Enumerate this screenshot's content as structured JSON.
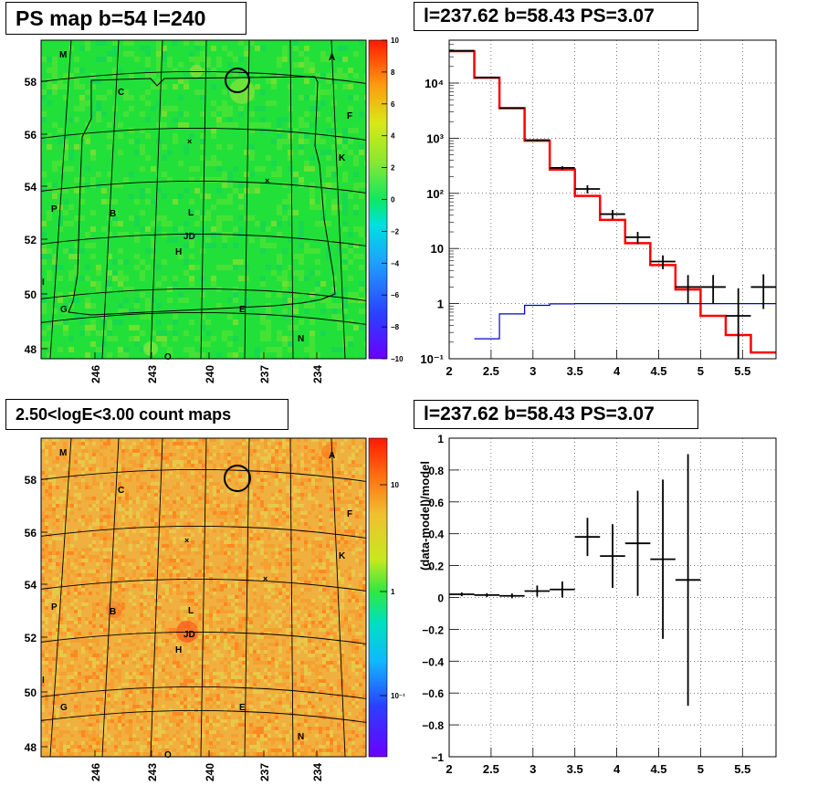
{
  "panels": {
    "ps_map": {
      "title": "PS map b=54 l=240",
      "lat_ticks": [
        "58",
        "56",
        "54",
        "52",
        "50",
        "48"
      ],
      "lon_ticks": [
        "246",
        "243",
        "240",
        "237",
        "234"
      ],
      "colorbar_ticks": [
        "10",
        "8",
        "6",
        "4",
        "2",
        "0",
        "−2",
        "−4",
        "−6",
        "−8",
        "−10"
      ],
      "colorbar_range": [
        -10,
        10
      ]
    },
    "count_map": {
      "title": "2.50<logE<3.00 count maps",
      "lat_ticks": [
        "58",
        "56",
        "54",
        "52",
        "50",
        "48"
      ],
      "lon_ticks": [
        "246",
        "243",
        "240",
        "237",
        "234"
      ],
      "colorbar_ticks": [
        "10",
        "1",
        "10⁻¹"
      ]
    },
    "spectrum": {
      "title": "l=237.62 b=58.43 PS=3.07"
    },
    "residual": {
      "title": "l=237.62 b=58.43 PS=3.07"
    }
  },
  "map_labels": [
    "M",
    "A",
    "C",
    "F",
    "K",
    "P",
    "B",
    "L",
    "JD",
    "H",
    "I",
    "G",
    "E",
    "N",
    "O"
  ],
  "colors": {
    "ps_background": "#22e03a",
    "count_background": "#f0b040",
    "model_line": "#ff0000",
    "background_line": "#0000cc",
    "data": "#000000"
  },
  "chart_data": [
    {
      "type": "line",
      "panel": "spectrum",
      "xlim": [
        2.0,
        5.9
      ],
      "ylim": [
        0.1,
        60000
      ],
      "yscale": "log",
      "x_ticks": [
        "2",
        "2.5",
        "3",
        "3.5",
        "4",
        "4.5",
        "5",
        "5.5"
      ],
      "y_ticks": [
        "10⁻¹",
        "1",
        "10",
        "10²",
        "10³",
        "10⁴"
      ],
      "grid": true,
      "series": [
        {
          "kind": "histogram",
          "color": "#ff0000",
          "edges": [
            2.0,
            2.3,
            2.6,
            2.9,
            3.2,
            3.5,
            3.8,
            4.1,
            4.4,
            4.7,
            5.0,
            5.3,
            5.6,
            5.9
          ],
          "values": [
            38000,
            12500,
            3500,
            900,
            270,
            90,
            33,
            12.5,
            5,
            1.8,
            0.6,
            0.27,
            0.13
          ]
        },
        {
          "kind": "histogram",
          "color": "#0000cc",
          "edges": [
            2.3,
            2.6,
            2.9,
            3.2,
            3.5,
            5.9
          ],
          "values": [
            0.23,
            0.65,
            0.93,
            0.99,
            1.0
          ]
        },
        {
          "kind": "errorbars",
          "color": "#000000",
          "x": [
            2.15,
            2.45,
            2.75,
            3.05,
            3.35,
            3.65,
            3.95,
            4.25,
            4.55,
            4.85,
            5.15,
            5.45,
            5.75
          ],
          "y": [
            38500,
            12600,
            3520,
            920,
            290,
            120,
            42,
            16,
            5.8,
            2.0,
            2.0,
            0.6,
            2.0
          ],
          "ylo": [
            38000,
            12400,
            3400,
            880,
            270,
            100,
            34,
            12,
            4.2,
            1.0,
            1.0,
            0.1,
            0.8
          ],
          "yhi": [
            39000,
            12800,
            3640,
            960,
            310,
            140,
            50,
            20,
            7.5,
            3.3,
            3.3,
            1.9,
            3.4
          ]
        }
      ]
    },
    {
      "type": "scatter",
      "panel": "residual",
      "ylabel": "(data-model)/model",
      "xlim": [
        2.0,
        5.9
      ],
      "ylim": [
        -1.0,
        1.0
      ],
      "x_ticks": [
        "2",
        "2.5",
        "3",
        "3.5",
        "4",
        "4.5",
        "5",
        "5.5"
      ],
      "y_ticks": [
        "−1",
        "−0.8",
        "−0.6",
        "−0.4",
        "−0.2",
        "0",
        "0.2",
        "0.4",
        "0.6",
        "0.8",
        "1"
      ],
      "grid": true,
      "points": [
        {
          "x": 2.15,
          "y": 0.02,
          "err": 0.012
        },
        {
          "x": 2.45,
          "y": 0.015,
          "err": 0.012
        },
        {
          "x": 2.75,
          "y": 0.01,
          "err": 0.015
        },
        {
          "x": 3.05,
          "y": 0.04,
          "err": 0.035
        },
        {
          "x": 3.35,
          "y": 0.05,
          "err": 0.05
        },
        {
          "x": 3.65,
          "y": 0.38,
          "err": 0.12
        },
        {
          "x": 3.95,
          "y": 0.26,
          "err": 0.2
        },
        {
          "x": 4.25,
          "y": 0.34,
          "err": 0.33
        },
        {
          "x": 4.55,
          "y": 0.24,
          "err": 0.5
        },
        {
          "x": 4.85,
          "y": 0.11,
          "err": 0.79
        }
      ]
    }
  ]
}
